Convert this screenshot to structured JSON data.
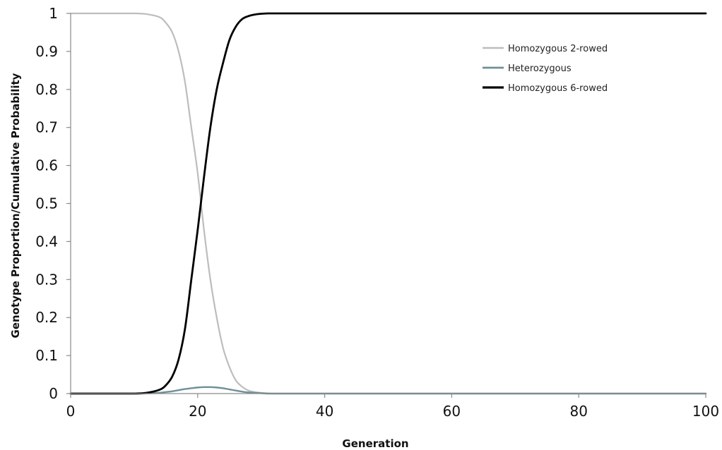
{
  "chart_data": {
    "type": "line",
    "title": "",
    "xlabel": "Generation",
    "ylabel": "Genotype Proportion/Cumulative Probability",
    "xlim": [
      0,
      100
    ],
    "ylim": [
      0,
      1
    ],
    "x_ticks": [
      0,
      20,
      40,
      60,
      80,
      100
    ],
    "y_ticks": [
      0,
      0.1,
      0.2,
      0.3,
      0.4,
      0.5,
      0.6,
      0.7,
      0.8,
      0.9,
      1
    ],
    "x_tick_labels": [
      "0",
      "20",
      "40",
      "60",
      "80",
      "100"
    ],
    "y_tick_labels": [
      "0",
      "0.1",
      "0.2",
      "0.3",
      "0.4",
      "0.5",
      "0.6",
      "0.7",
      "0.8",
      "0.9",
      "1"
    ],
    "grid": false,
    "legend_position": "top-right",
    "x": [
      0,
      5,
      10,
      12,
      14,
      15,
      16,
      17,
      18,
      19,
      20,
      21,
      22,
      23,
      24,
      25,
      26,
      27,
      28,
      29,
      30,
      31,
      32,
      35,
      40,
      50,
      60,
      70,
      80,
      90,
      100
    ],
    "series": [
      {
        "name": "Homozygous 2-rowed",
        "color": "#bdbdbd",
        "values": [
          1,
          1,
          1,
          0.998,
          0.99,
          0.975,
          0.95,
          0.9,
          0.82,
          0.7,
          0.58,
          0.43,
          0.3,
          0.2,
          0.12,
          0.07,
          0.035,
          0.018,
          0.008,
          0.004,
          0.002,
          0.001,
          0,
          0,
          0,
          0,
          0,
          0,
          0,
          0,
          0
        ]
      },
      {
        "name": "Heterozygous",
        "color": "#6f8f9a",
        "values": [
          0,
          0,
          0,
          0.0005,
          0.002,
          0.004,
          0.006,
          0.009,
          0.012,
          0.014,
          0.016,
          0.017,
          0.017,
          0.016,
          0.014,
          0.011,
          0.008,
          0.005,
          0.003,
          0.002,
          0.001,
          0,
          0,
          0,
          0,
          0,
          0,
          0,
          0,
          0,
          0
        ]
      },
      {
        "name": "Homozygous 6-rowed",
        "color": "#000000",
        "values": [
          0,
          0,
          0,
          0.002,
          0.01,
          0.022,
          0.045,
          0.09,
          0.17,
          0.3,
          0.43,
          0.57,
          0.7,
          0.8,
          0.87,
          0.93,
          0.965,
          0.985,
          0.993,
          0.997,
          0.999,
          1,
          1,
          1,
          1,
          1,
          1,
          1,
          1,
          1,
          1
        ]
      }
    ]
  }
}
